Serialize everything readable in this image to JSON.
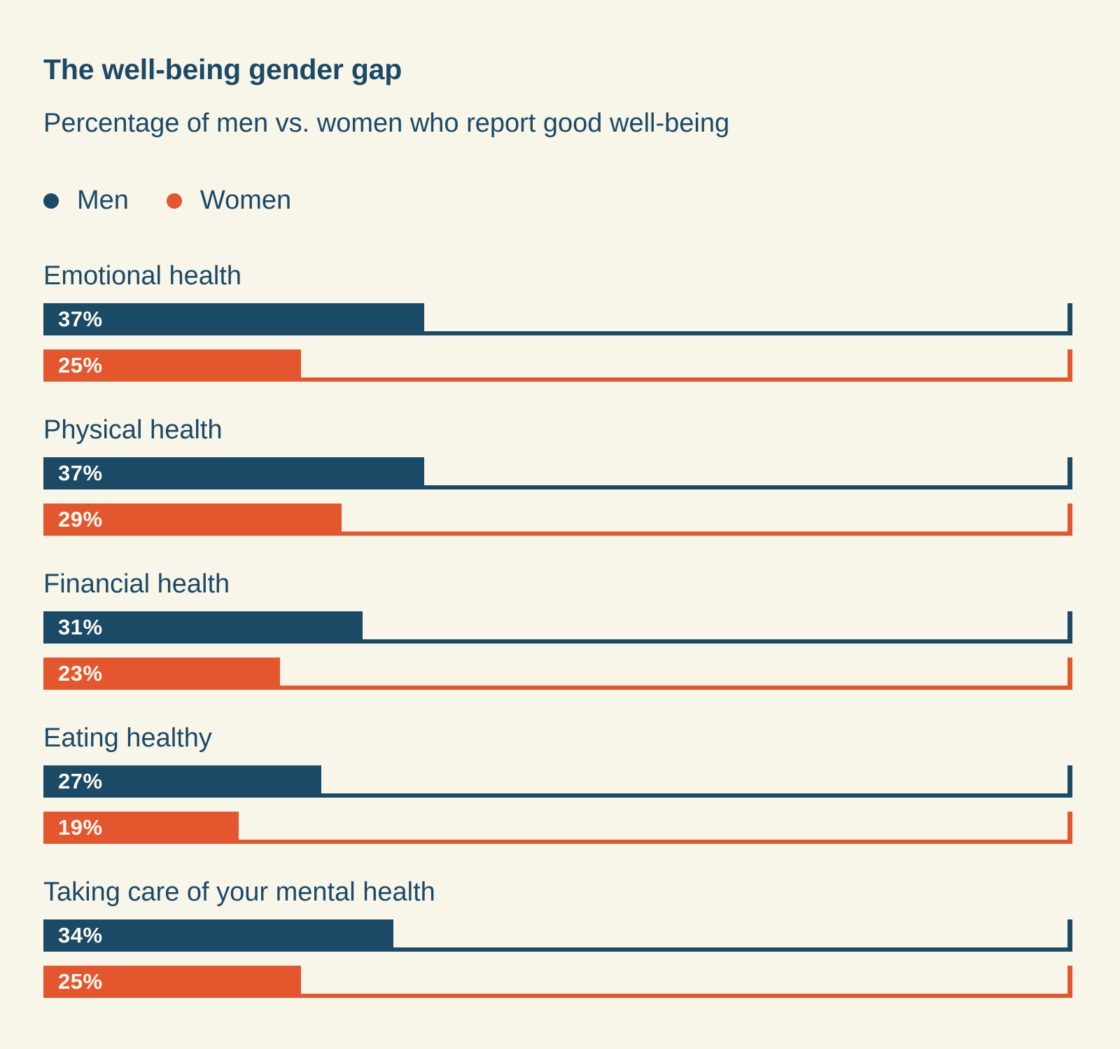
{
  "page": {
    "background": "#F8F5E9",
    "text_color": "#1B4A67"
  },
  "header": {
    "title": "The well-being gender gap",
    "subtitle": "Percentage of men vs. women who report good well-being"
  },
  "legend": {
    "items": [
      {
        "label": "Men",
        "color": "#1B4A67"
      },
      {
        "label": "Women",
        "color": "#E4572E"
      }
    ]
  },
  "chart_data": {
    "type": "bar",
    "orientation": "horizontal",
    "title": "The well-being gender gap",
    "subtitle": "Percentage of men vs. women who report good well-being",
    "xlabel": "",
    "ylabel": "",
    "xlim": [
      0,
      100
    ],
    "unit": "percent",
    "grid": false,
    "legend_position": "top-left",
    "value_labels_inside_bars": true,
    "categories": [
      "Emotional health",
      "Physical health",
      "Financial health",
      "Eating healthy",
      "Taking care of your mental health"
    ],
    "series": [
      {
        "name": "Men",
        "color": "#1B4A67",
        "values": [
          37,
          37,
          31,
          27,
          34
        ],
        "labels": [
          "37%",
          "37%",
          "31%",
          "27%",
          "34%"
        ]
      },
      {
        "name": "Women",
        "color": "#E4572E",
        "values": [
          25,
          29,
          23,
          19,
          25
        ],
        "labels": [
          "25%",
          "29%",
          "23%",
          "19%",
          "25%"
        ]
      }
    ]
  }
}
